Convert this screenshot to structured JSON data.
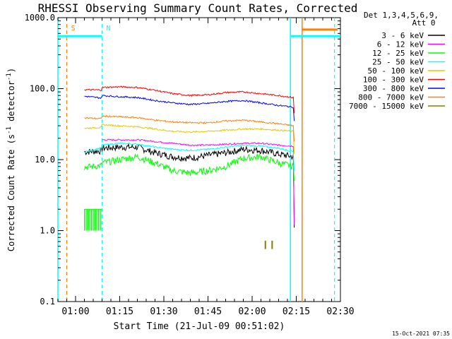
{
  "chart_data": {
    "type": "line",
    "title": "RHESSI Observing Summary Count Rates, Corrected",
    "xlabel": "Start Time (21-Jul-09 00:51:02)",
    "ylabel_main": "Corrected Count Rate (s",
    "ylabel_sup1": "-1",
    "ylabel_mid": " detector",
    "ylabel_sup2": "-1",
    "ylabel_end": ")",
    "yscale": "log",
    "ylim": [
      0.1,
      1000
    ],
    "xlim_minutes": [
      -6,
      90
    ],
    "x_ticks": [
      {
        "min": 0,
        "label": "01:00"
      },
      {
        "min": 15,
        "label": "01:15"
      },
      {
        "min": 30,
        "label": "01:30"
      },
      {
        "min": 45,
        "label": "01:45"
      },
      {
        "min": 60,
        "label": "02:00"
      },
      {
        "min": 75,
        "label": "02:15"
      },
      {
        "min": 90,
        "label": "02:30"
      }
    ],
    "y_ticks": [
      {
        "v": 0.1,
        "label": "0.1"
      },
      {
        "v": 1,
        "label": "1.0"
      },
      {
        "v": 10,
        "label": "10.0"
      },
      {
        "v": 100,
        "label": "100.0"
      },
      {
        "v": 1000,
        "label": "1000.0"
      }
    ],
    "legend_header": [
      "Det 1,3,4,5,6,9,",
      "Att 0"
    ],
    "legend_placement": "right",
    "series": [
      {
        "name": "3 - 6 keV",
        "color": "#000000",
        "start": 3,
        "end": 74,
        "tail": 1.1,
        "x": [
          3,
          9,
          15,
          21,
          27,
          33,
          39,
          45,
          51,
          57,
          63,
          69,
          74
        ],
        "y": [
          14,
          14.5,
          15,
          15,
          12.5,
          11,
          10.5,
          11.5,
          12.5,
          14,
          13.5,
          12,
          11
        ]
      },
      {
        "name": "6 - 12 keV",
        "color": "#ff00ff",
        "start": 9,
        "end": 74,
        "tail": 1.2,
        "x": [
          9,
          15,
          21,
          27,
          33,
          39,
          45,
          51,
          57,
          63,
          69,
          74
        ],
        "y": [
          19,
          19,
          19,
          18,
          17,
          16,
          16,
          16.5,
          17,
          17,
          16,
          15.5
        ]
      },
      {
        "name": "12 - 25 keV",
        "color": "#00ff00",
        "start": 3,
        "end": 74,
        "tail": 5,
        "x": [
          3,
          9,
          15,
          21,
          27,
          33,
          39,
          45,
          51,
          57,
          63,
          69,
          74
        ],
        "y": [
          8.5,
          9,
          10,
          11,
          9,
          7,
          6.5,
          7,
          8,
          10.5,
          11,
          9,
          8
        ]
      },
      {
        "name": "25 - 50 keV",
        "color": "#00ffff",
        "start": 3,
        "end": 74,
        "tail": 7,
        "x": [
          3,
          9,
          15,
          21,
          27,
          33,
          39,
          45,
          51,
          57,
          63,
          69,
          74
        ],
        "y": [
          14,
          16,
          17,
          16.5,
          15,
          14,
          13.5,
          14,
          15,
          16,
          15.5,
          14.5,
          13
        ]
      },
      {
        "name": "50 - 100 keV",
        "color": "#e6c800",
        "start": 3,
        "end": 74,
        "tail": 12,
        "x": [
          3,
          9,
          15,
          21,
          27,
          33,
          39,
          45,
          51,
          57,
          63,
          69,
          74
        ],
        "y": [
          30,
          31,
          30,
          29,
          27,
          25,
          24.5,
          25,
          26,
          27,
          27,
          26,
          25
        ]
      },
      {
        "name": "100 - 300 keV",
        "color": "#ff0000",
        "start": 3,
        "end": 74,
        "tail": 45,
        "x": [
          3,
          9,
          15,
          21,
          27,
          33,
          39,
          45,
          51,
          57,
          63,
          69,
          74
        ],
        "y": [
          105,
          104,
          106,
          104,
          95,
          85,
          80,
          82,
          88,
          90,
          85,
          80,
          75
        ]
      },
      {
        "name": "300 - 800 keV",
        "color": "#0000ff",
        "start": 3,
        "end": 74,
        "tail": 35,
        "x": [
          3,
          9,
          15,
          21,
          27,
          33,
          39,
          45,
          51,
          57,
          63,
          69,
          74
        ],
        "y": [
          85,
          80,
          77,
          75,
          68,
          63,
          60,
          62,
          66,
          68,
          63,
          58,
          55
        ]
      },
      {
        "name": "800 - 7000 keV",
        "color": "#ff8000",
        "start": 3,
        "end": 74,
        "tail": 18,
        "x": [
          3,
          9,
          15,
          21,
          27,
          33,
          39,
          45,
          51,
          57,
          63,
          69,
          74
        ],
        "y": [
          42,
          41,
          40,
          39,
          36,
          34,
          33,
          33,
          35,
          36,
          34,
          32,
          30
        ]
      },
      {
        "name": "7000 - 15000 keV",
        "color": "#808000",
        "start": 64,
        "end": 68,
        "tail": 0,
        "x": [
          64,
          66,
          68
        ],
        "y": [
          0.7,
          0.7,
          0.7
        ]
      }
    ],
    "cyan_levels": [
      {
        "v": 0.8,
        "x_from": -6,
        "x_to": -6
      },
      {
        "v": 550,
        "x_from": -6,
        "x_to": 9
      },
      {
        "v": 550,
        "x_from": 73,
        "x_to": 90
      }
    ],
    "orange_level": {
      "v": 680,
      "x_from": 77,
      "x_to": 89
    },
    "vertical_markers": [
      {
        "min": -6,
        "color": "#00ffff",
        "style": "solid"
      },
      {
        "min": -3,
        "color": "#ff8000",
        "style": "dashed",
        "label": "S"
      },
      {
        "min": 9,
        "color": "#00ffff",
        "style": "dashed",
        "label": "N"
      },
      {
        "min": 73,
        "color": "#00ffff",
        "style": "solid"
      },
      {
        "min": 77,
        "color": "#ff8000",
        "style": "solid"
      },
      {
        "min": 88,
        "color": "#00ffff",
        "style": "dashed"
      }
    ],
    "low_green_block": {
      "x_from": 3,
      "x_to": 9,
      "y_from": 1,
      "y_to": 2
    },
    "timestamp": "15-Oct-2021 07:35"
  }
}
